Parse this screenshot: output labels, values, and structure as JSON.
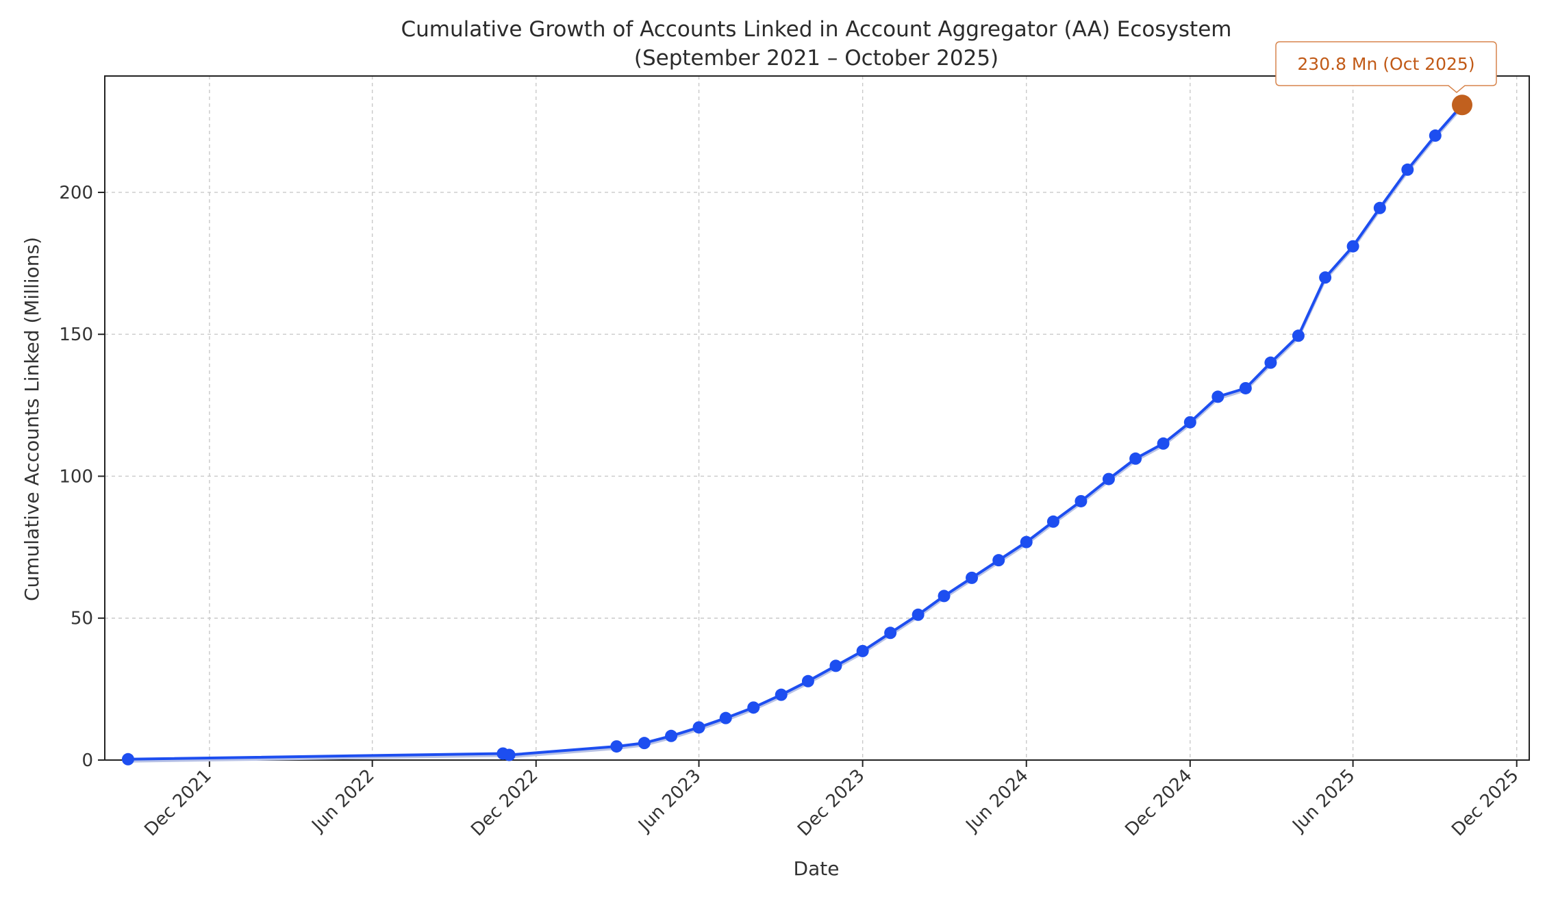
{
  "chart_data": {
    "type": "line",
    "title": "Cumulative Growth of Accounts Linked in Account Aggregator (AA) Ecosystem",
    "subtitle": "(September 2021 – October 2025)",
    "xlabel": "Date",
    "ylabel": "Cumulative Accounts Linked (Millions)",
    "x_axis": {
      "type": "date",
      "range": [
        "2021-08-06",
        "2025-12-15"
      ],
      "ticks": [
        {
          "date": "2021-12-01",
          "label": "Dec 2021"
        },
        {
          "date": "2022-06-01",
          "label": "Jun 2022"
        },
        {
          "date": "2022-12-01",
          "label": "Dec 2022"
        },
        {
          "date": "2023-06-01",
          "label": "Jun 2023"
        },
        {
          "date": "2023-12-01",
          "label": "Dec 2023"
        },
        {
          "date": "2024-06-01",
          "label": "Jun 2024"
        },
        {
          "date": "2024-12-01",
          "label": "Dec 2024"
        },
        {
          "date": "2025-06-01",
          "label": "Jun 2025"
        },
        {
          "date": "2025-12-01",
          "label": "Dec 2025"
        }
      ]
    },
    "y_axis": {
      "ylim": [
        0,
        241
      ],
      "ticks": [
        0,
        50,
        100,
        150,
        200
      ]
    },
    "grid": true,
    "colors": {
      "line": "#1d4ef0",
      "highlight": "#c1601e",
      "callout_text": "#c15a17",
      "callout_border": "#d7844b"
    },
    "series": [
      {
        "x": [
          "2021-09-01",
          "2022-10-25",
          "2022-11-01",
          "2023-03-01",
          "2023-04-01",
          "2023-05-01",
          "2023-06-01",
          "2023-07-01",
          "2023-08-01",
          "2023-09-01",
          "2023-10-01",
          "2023-11-01",
          "2023-12-01",
          "2024-01-01",
          "2024-02-01",
          "2024-03-01",
          "2024-04-01",
          "2024-05-01",
          "2024-06-01",
          "2024-07-01",
          "2024-08-01",
          "2024-09-01",
          "2024-10-01",
          "2024-11-01",
          "2024-12-01",
          "2025-01-01",
          "2025-02-01",
          "2025-03-01",
          "2025-04-01",
          "2025-05-01",
          "2025-06-01",
          "2025-07-01",
          "2025-08-01",
          "2025-09-01",
          "2025-10-01"
        ],
        "y": [
          0.3,
          2.3,
          1.8,
          4.8,
          6.0,
          8.5,
          11.5,
          14.8,
          18.5,
          23.0,
          27.8,
          33.2,
          38.4,
          44.8,
          51.2,
          57.8,
          64.2,
          70.4,
          76.8,
          84.0,
          91.2,
          99.0,
          106.2,
          111.5,
          119.0,
          128.0,
          131.0,
          140.0,
          149.5,
          170.0,
          181.0,
          194.5,
          208.0,
          220.0,
          230.8
        ]
      }
    ],
    "highlight": {
      "x": "2025-10-01",
      "y": 230.8,
      "label": "230.8 Mn (Oct 2025)"
    }
  }
}
